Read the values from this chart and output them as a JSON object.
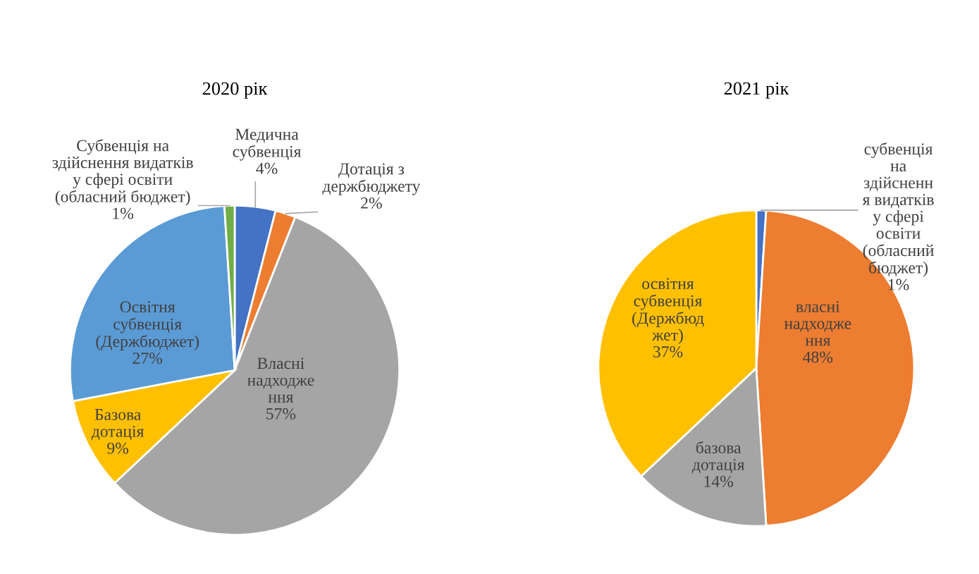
{
  "chart_data": [
    {
      "type": "pie",
      "title": "2020 рік",
      "categories": [
        "Медична\nсубвенція",
        "Дотація з\nдержбюджету",
        "Власні\nнадходже\nння",
        "Базова\nдотація",
        "Освітня\nсубвенція\n(Держбюджет)",
        "Субвенція на\nздійснення видатків\nу сфері освіти\n(обласний бюджет)"
      ],
      "values": [
        4,
        2,
        57,
        9,
        27,
        1
      ],
      "colors": [
        "#4472c4",
        "#ed7d31",
        "#a5a5a5",
        "#ffc000",
        "#5b9bd5",
        "#70ad47"
      ],
      "value_labels": [
        "4%",
        "2%",
        "57%",
        "9%",
        "27%",
        "1%"
      ]
    },
    {
      "type": "pie",
      "title": "2021 рік",
      "categories": [
        "субвенція\nна\nздійсненн\nя видатків\nу сфері\nосвіти\n(обласний\nбюджет)",
        "власні\nнадходже\nння",
        "базова\nдотація",
        "освітня\nсубвенція\n(Держбюд\nжет)"
      ],
      "values": [
        1,
        48,
        14,
        37
      ],
      "colors": [
        "#4472c4",
        "#ed7d31",
        "#a5a5a5",
        "#ffc000"
      ],
      "value_labels": [
        "1%",
        "48%",
        "14%",
        "37%"
      ]
    }
  ]
}
